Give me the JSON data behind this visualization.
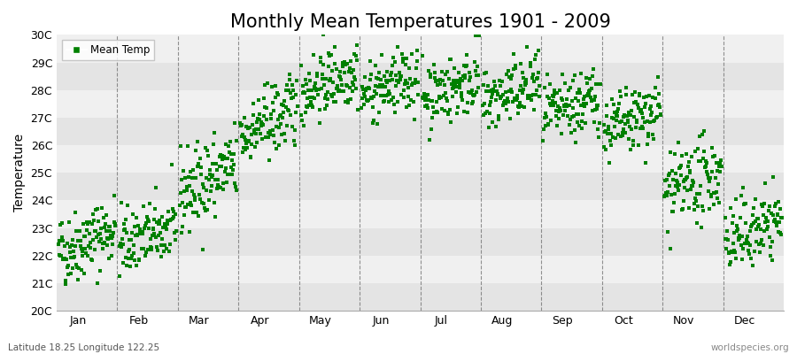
{
  "title": "Monthly Mean Temperatures 1901 - 2009",
  "ylabel": "Temperature",
  "xlabel_months": [
    "Jan",
    "Feb",
    "Mar",
    "Apr",
    "May",
    "Jun",
    "Jul",
    "Aug",
    "Sep",
    "Oct",
    "Nov",
    "Dec"
  ],
  "ytick_labels": [
    "20C",
    "21C",
    "22C",
    "23C",
    "24C",
    "25C",
    "26C",
    "27C",
    "28C",
    "29C",
    "30C"
  ],
  "ytick_values": [
    20,
    21,
    22,
    23,
    24,
    25,
    26,
    27,
    28,
    29,
    30
  ],
  "ylim": [
    20,
    30
  ],
  "xlim": [
    0,
    12
  ],
  "marker_color": "#008000",
  "marker": "s",
  "marker_size": 2.5,
  "bg_band_color_dark": "#e4e4e4",
  "bg_band_color_light": "#f0f0f0",
  "dashed_line_color": "#666666",
  "legend_label": "Mean Temp",
  "bottom_left_text": "Latitude 18.25 Longitude 122.25",
  "bottom_right_text": "worldspecies.org",
  "title_fontsize": 15,
  "axis_label_fontsize": 10,
  "tick_fontsize": 9,
  "monthly_means": [
    22.1,
    22.4,
    24.2,
    26.3,
    27.9,
    27.8,
    27.7,
    27.5,
    27.0,
    26.5,
    24.2,
    22.5
  ],
  "monthly_stds": [
    0.65,
    0.6,
    0.75,
    0.65,
    0.6,
    0.55,
    0.6,
    0.6,
    0.6,
    0.6,
    0.7,
    0.65
  ],
  "monthly_trend": [
    0.008,
    0.006,
    0.01,
    0.01,
    0.008,
    0.006,
    0.007,
    0.007,
    0.007,
    0.007,
    0.008,
    0.008
  ],
  "year_start": 1901,
  "year_end": 2009,
  "seed": 42
}
